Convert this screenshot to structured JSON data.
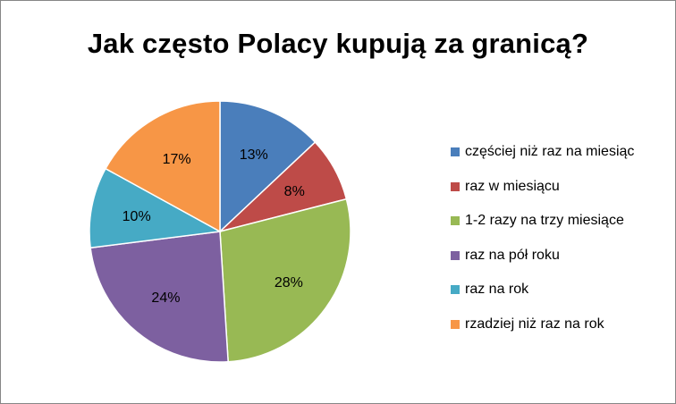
{
  "chart_data": {
    "type": "pie",
    "title": "Jak często Polacy kupują za granicą?",
    "legend_position": "right",
    "slices": [
      {
        "name": "częściej niż raz na miesiąc",
        "value": 13,
        "label": "13%",
        "color": "#4A7EBB"
      },
      {
        "name": "raz w miesiącu",
        "value": 8,
        "label": "8%",
        "color": "#BE4B48"
      },
      {
        "name": "1-2 razy na trzy miesiące",
        "value": 28,
        "label": "28%",
        "color": "#98B954"
      },
      {
        "name": "raz na pół roku",
        "value": 24,
        "label": "24%",
        "color": "#7D60A0"
      },
      {
        "name": "raz na rok",
        "value": 10,
        "label": "10%",
        "color": "#46AAC5"
      },
      {
        "name": "rzadziej niż raz na rok",
        "value": 17,
        "label": "17%",
        "color": "#F79646"
      }
    ]
  }
}
